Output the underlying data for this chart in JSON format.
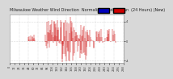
{
  "title_line1": "Milwaukee Weather Wind Direction",
  "title_line2": "Normalized and Median",
  "title_line3": "(24 Hours) (New)",
  "bg_color": "#d8d8d8",
  "plot_bg_color": "#ffffff",
  "line_color": "#cc0000",
  "legend_color1": "#0000bb",
  "legend_color2": "#cc0000",
  "ylim": [
    -4.5,
    5.5
  ],
  "xlim": [
    0,
    288
  ],
  "ytick_vals": [
    -4,
    0,
    4
  ],
  "ytick_labels": [
    "-4",
    "0",
    "4"
  ],
  "grid_color": "#bbbbbb",
  "title_fontsize": 3.5,
  "tick_fontsize": 2.5,
  "data_seed": 99
}
